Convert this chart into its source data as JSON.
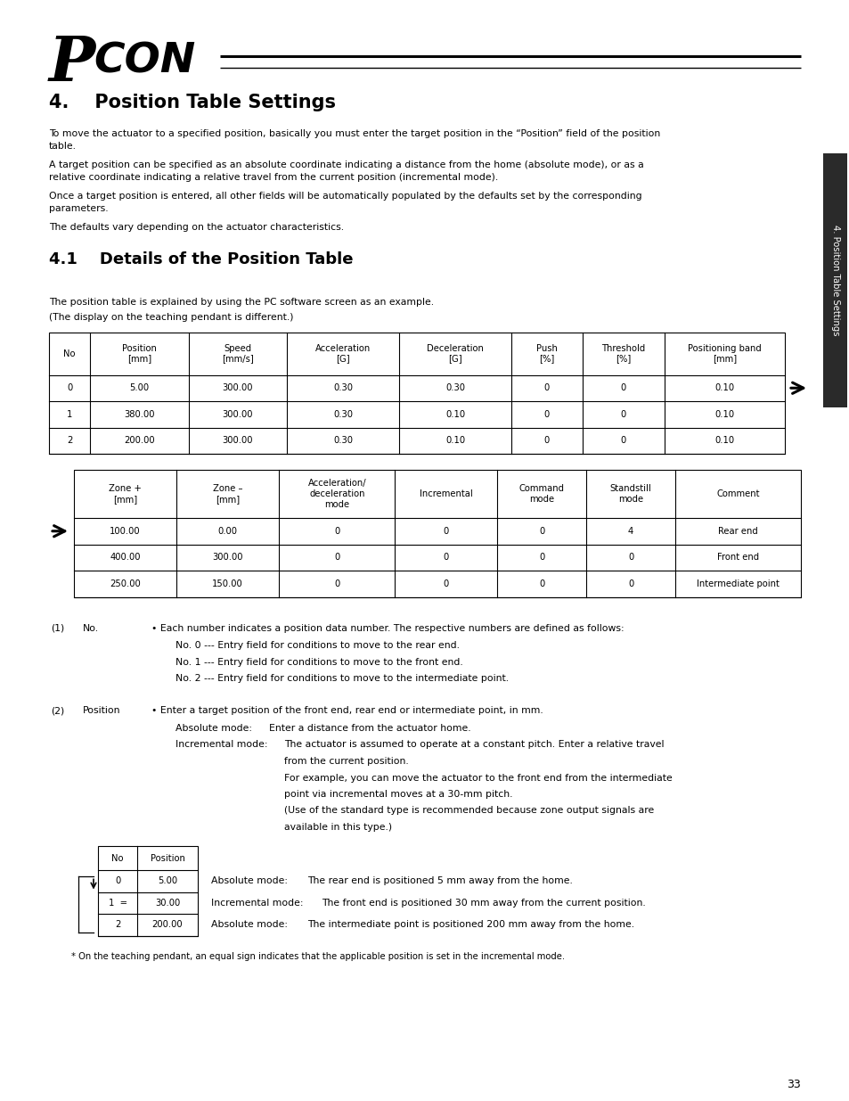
{
  "bg_color": "#ffffff",
  "page_width": 9.54,
  "page_height": 12.35,
  "ml": 0.55,
  "mr": 0.55,
  "logo_p": "P",
  "logo_con": "CON",
  "section_title": "4.    Position Table Settings",
  "intro_paragraphs": [
    "To move the actuator to a specified position, basically you must enter the target position in the “Position” field of the position\ntable.",
    "A target position can be specified as an absolute coordinate indicating a distance from the home (absolute mode), or as a\nrelative coordinate indicating a relative travel from the current position (incremental mode).",
    "Once a target position is entered, all other fields will be automatically populated by the defaults set by the corresponding\nparameters.",
    "The defaults vary depending on the actuator characteristics."
  ],
  "subsection_title": "4.1    Details of the Position Table",
  "table_intro_line1": "The position table is explained by using the PC software screen as an example.",
  "table_intro_line2": "(The display on the teaching pendant is different.)",
  "table1_headers": [
    "No",
    "Position\n[mm]",
    "Speed\n[mm/s]",
    "Acceleration\n[G]",
    "Deceleration\n[G]",
    "Push\n[%]",
    "Threshold\n[%]",
    "Positioning band\n[mm]"
  ],
  "table1_col_weights": [
    0.3,
    0.72,
    0.72,
    0.82,
    0.82,
    0.52,
    0.6,
    0.88
  ],
  "table1_rows": [
    [
      "0",
      "5.00",
      "300.00",
      "0.30",
      "0.30",
      "0",
      "0",
      "0.10"
    ],
    [
      "1",
      "380.00",
      "300.00",
      "0.30",
      "0.10",
      "0",
      "0",
      "0.10"
    ],
    [
      "2",
      "200.00",
      "300.00",
      "0.30",
      "0.10",
      "0",
      "0",
      "0.10"
    ]
  ],
  "table2_headers": [
    "Zone +\n[mm]",
    "Zone –\n[mm]",
    "Acceleration/\ndeceleration\nmode",
    "Incremental",
    "Command\nmode",
    "Standstill\nmode",
    "Comment"
  ],
  "table2_col_weights": [
    0.75,
    0.75,
    0.85,
    0.75,
    0.65,
    0.65,
    0.92
  ],
  "table2_rows": [
    [
      "100.00",
      "0.00",
      "0",
      "0",
      "0",
      "4",
      "Rear end"
    ],
    [
      "400.00",
      "300.00",
      "0",
      "0",
      "0",
      "0",
      "Front end"
    ],
    [
      "250.00",
      "150.00",
      "0",
      "0",
      "0",
      "0",
      "Intermediate point"
    ]
  ],
  "note1_num": "(1)",
  "note1_label": "No.",
  "note1_bullet": "• Each number indicates a position data number. The respective numbers are defined as follows:",
  "note1_subs": [
    "No. 0 --- Entry field for conditions to move to the rear end.",
    "No. 1 --- Entry field for conditions to move to the front end.",
    "No. 2 --- Entry field for conditions to move to the intermediate point."
  ],
  "note2_num": "(2)",
  "note2_label": "Position",
  "note2_bullet": "• Enter a target position of the front end, rear end or intermediate point, in mm.",
  "note2_line1a": "Absolute mode:",
  "note2_line1b": "Enter a distance from the actuator home.",
  "note2_line2a": "Incremental mode:",
  "note2_line2b": "The actuator is assumed to operate at a constant pitch. Enter a relative travel",
  "note2_line2c": "from the current position.",
  "note2_line3": "For example, you can move the actuator to the front end from the intermediate",
  "note2_line3b": "point via incremental moves at a 30-mm pitch.",
  "note2_line4": "(Use of the standard type is recommended because zone output signals are",
  "note2_line4b": "available in this type.)",
  "small_table_headers": [
    "No",
    "Position"
  ],
  "small_table_rows": [
    [
      "0",
      "5.00"
    ],
    [
      "1  =",
      "30.00"
    ],
    [
      "2",
      "200.00"
    ]
  ],
  "small_note1a": "Absolute mode:",
  "small_note1b": "The rear end is positioned 5 mm away from the home.",
  "small_note2a": "Incremental mode:",
  "small_note2b": "The front end is positioned 30 mm away from the current position.",
  "small_note3a": "Absolute mode:",
  "small_note3b": "The intermediate point is positioned 200 mm away from the home.",
  "small_footnote": "* On the teaching pendant, an equal sign indicates that the applicable position is set in the incremental mode.",
  "sidebar_text": "4. Position Table Settings",
  "page_number": "33"
}
